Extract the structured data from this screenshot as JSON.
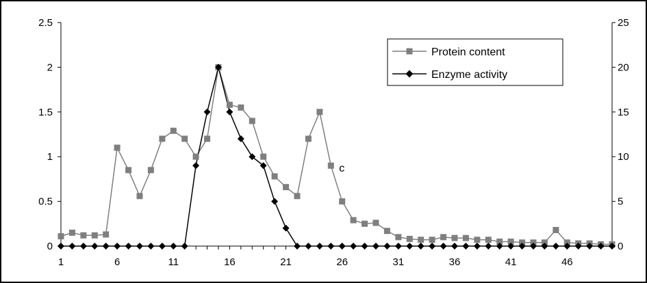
{
  "chart_data": {
    "type": "line",
    "x": [
      1,
      2,
      3,
      4,
      5,
      6,
      7,
      8,
      9,
      10,
      11,
      12,
      13,
      14,
      15,
      16,
      17,
      18,
      19,
      20,
      21,
      22,
      23,
      24,
      25,
      26,
      27,
      28,
      29,
      30,
      31,
      32,
      33,
      34,
      35,
      36,
      37,
      38,
      39,
      40,
      41,
      42,
      43,
      44,
      45,
      46,
      47,
      48,
      49,
      50
    ],
    "x_tick_labels": [
      "1",
      "6",
      "11",
      "16",
      "21",
      "26",
      "31",
      "36",
      "41",
      "46"
    ],
    "left_axis": {
      "ylim": [
        0,
        2.5
      ],
      "tick_labels": [
        "0",
        "0.5",
        "1",
        "1.5",
        "2",
        "2.5"
      ]
    },
    "right_axis": {
      "ylim": [
        0,
        25
      ],
      "tick_labels": [
        "0",
        "5",
        "10",
        "15",
        "20",
        "25"
      ]
    },
    "legend_position": "top-right",
    "series": [
      {
        "name": "Protein content",
        "axis": "left",
        "marker": "square",
        "color": "#7f7f7f",
        "values": [
          0.11,
          0.15,
          0.12,
          0.12,
          0.13,
          1.1,
          0.85,
          0.56,
          0.85,
          1.2,
          1.29,
          1.2,
          1.0,
          1.2,
          2.0,
          1.58,
          1.55,
          1.4,
          1.0,
          0.78,
          0.66,
          0.56,
          1.2,
          1.5,
          0.9,
          0.5,
          0.29,
          0.25,
          0.26,
          0.17,
          0.1,
          0.08,
          0.07,
          0.07,
          0.1,
          0.09,
          0.09,
          0.07,
          0.07,
          0.05,
          0.05,
          0.04,
          0.04,
          0.04,
          0.18,
          0.04,
          0.03,
          0.03,
          0.02,
          0.02
        ]
      },
      {
        "name": "Enzyme activity",
        "axis": "right",
        "marker": "diamond",
        "color": "#000000",
        "values": [
          0,
          0,
          0,
          0,
          0,
          0,
          0,
          0,
          0,
          0,
          0,
          0,
          9,
          15,
          20,
          15,
          12,
          10,
          9,
          5,
          2,
          0,
          0,
          0,
          0,
          0,
          0,
          0,
          0,
          0,
          0,
          0,
          0,
          0,
          0,
          0,
          0,
          0,
          0,
          0,
          0,
          0,
          0,
          0,
          0,
          0,
          0,
          0,
          0,
          0
        ]
      }
    ],
    "annotations": [
      {
        "text": "c",
        "x": 25,
        "y": 0.88
      }
    ]
  }
}
